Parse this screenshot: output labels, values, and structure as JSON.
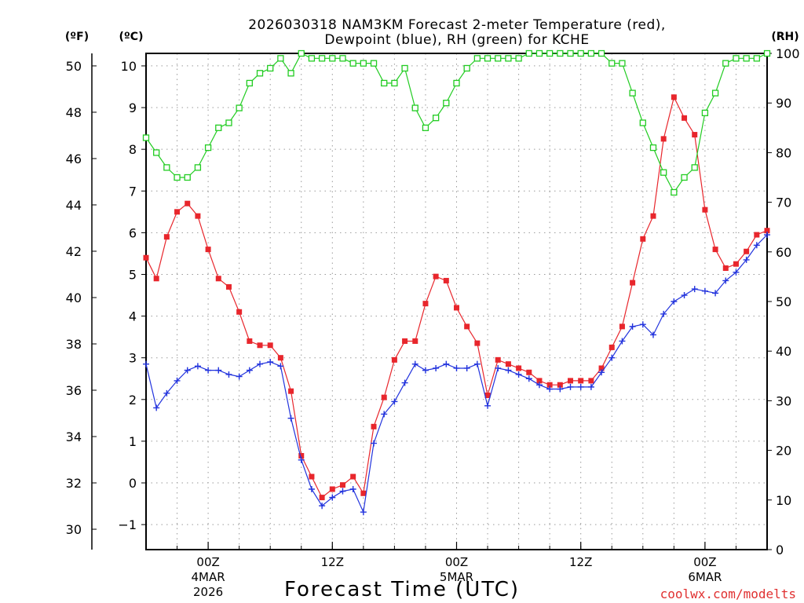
{
  "chart_data": {
    "type": "line",
    "title_line1": "2026030318 NAM3KM Forecast 2-meter Temperature (red),",
    "title_line2": "Dewpoint (blue), RH (green) for KCHE",
    "xlabel": "Forecast Time (UTC)",
    "axis_unit_f": "(ºF)",
    "axis_unit_c": "(ºC)",
    "axis_unit_rh": "(RH)",
    "credit": "coolwx.com/modelts",
    "x_range_hours": [
      18,
      78
    ],
    "x_ticks": [
      {
        "hour": 24,
        "line1": "00Z",
        "line2": "4MAR",
        "line3": "2026"
      },
      {
        "hour": 36,
        "line1": "12Z",
        "line2": "",
        "line3": ""
      },
      {
        "hour": 48,
        "line1": "00Z",
        "line2": "5MAR",
        "line3": ""
      },
      {
        "hour": 60,
        "line1": "12Z",
        "line2": "",
        "line3": ""
      },
      {
        "hour": 72,
        "line1": "00Z",
        "line2": "6MAR",
        "line3": ""
      }
    ],
    "y_left_celsius": {
      "range": [
        -1.6,
        10.3
      ],
      "ticks": [
        -1,
        0,
        1,
        2,
        3,
        4,
        5,
        6,
        7,
        8,
        9,
        10
      ]
    },
    "y_left_fahrenheit": {
      "ticks": [
        30,
        32,
        34,
        36,
        38,
        40,
        42,
        44,
        46,
        48,
        50
      ]
    },
    "y_right_rh": {
      "range": [
        0,
        100
      ],
      "ticks": [
        0,
        10,
        20,
        30,
        40,
        50,
        60,
        70,
        80,
        90,
        100
      ]
    },
    "hours": [
      18,
      19,
      20,
      21,
      22,
      23,
      24,
      25,
      26,
      27,
      28,
      29,
      30,
      31,
      32,
      33,
      34,
      35,
      36,
      37,
      38,
      39,
      40,
      41,
      42,
      43,
      44,
      45,
      46,
      47,
      48,
      49,
      50,
      51,
      52,
      53,
      54,
      55,
      56,
      57,
      58,
      59,
      60,
      61,
      62,
      63,
      64,
      65,
      66,
      67,
      68,
      69,
      70,
      71,
      72,
      73,
      74,
      75,
      76,
      77,
      78
    ],
    "series": [
      {
        "name": "Temperature",
        "unit": "C",
        "color": "#e8262c",
        "values": [
          5.4,
          4.9,
          5.9,
          6.5,
          6.7,
          6.4,
          5.6,
          4.9,
          4.7,
          4.1,
          3.4,
          3.3,
          3.3,
          3.0,
          2.2,
          0.65,
          0.15,
          -0.35,
          -0.15,
          -0.05,
          0.15,
          -0.25,
          1.35,
          2.05,
          2.95,
          3.4,
          3.4,
          4.3,
          4.95,
          4.85,
          4.2,
          3.75,
          3.35,
          2.1,
          2.95,
          2.85,
          2.75,
          2.65,
          2.45,
          2.35,
          2.35,
          2.45,
          2.45,
          2.45,
          2.75,
          3.25,
          3.75,
          4.8,
          5.85,
          6.4,
          8.25,
          9.25,
          8.75,
          8.35,
          6.55,
          5.6,
          5.15,
          5.25,
          5.55,
          5.95,
          6.05
        ]
      },
      {
        "name": "Dewpoint",
        "unit": "C",
        "color": "#2233dd",
        "values": [
          2.85,
          1.8,
          2.15,
          2.45,
          2.7,
          2.8,
          2.7,
          2.7,
          2.6,
          2.55,
          2.7,
          2.85,
          2.9,
          2.8,
          1.55,
          0.55,
          -0.15,
          -0.55,
          -0.35,
          -0.2,
          -0.15,
          -0.7,
          0.95,
          1.65,
          1.95,
          2.4,
          2.85,
          2.7,
          2.75,
          2.85,
          2.75,
          2.75,
          2.85,
          1.85,
          2.75,
          2.7,
          2.6,
          2.5,
          2.35,
          2.25,
          2.25,
          2.3,
          2.3,
          2.3,
          2.65,
          3.0,
          3.4,
          3.75,
          3.8,
          3.55,
          4.05,
          4.35,
          4.5,
          4.65,
          4.6,
          4.55,
          4.85,
          5.05,
          5.35,
          5.7,
          5.95
        ]
      },
      {
        "name": "Relative Humidity",
        "unit": "%",
        "color": "#22cc22",
        "values": [
          83,
          80,
          77,
          75,
          75,
          77,
          81,
          85,
          86,
          89,
          94,
          96,
          97,
          99,
          96,
          100,
          99,
          99,
          99,
          99,
          98,
          98,
          98,
          94,
          94,
          97,
          89,
          85,
          87,
          90,
          94,
          97,
          99,
          99,
          99,
          99,
          99,
          100,
          100,
          100,
          100,
          100,
          100,
          100,
          100,
          98,
          98,
          92,
          86,
          81,
          76,
          72,
          75,
          77,
          88,
          92,
          98,
          99,
          99,
          99,
          100
        ]
      }
    ]
  }
}
